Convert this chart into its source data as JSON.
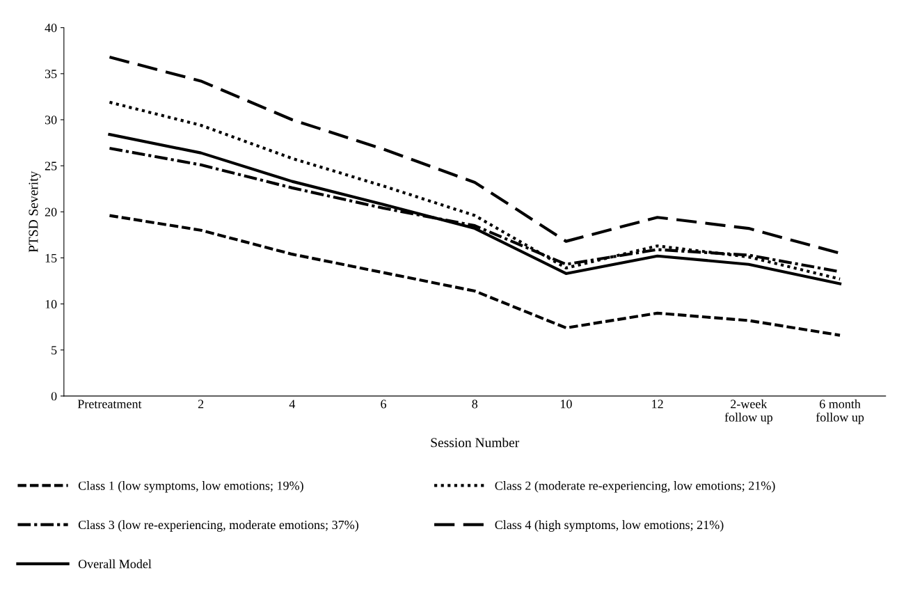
{
  "chart_data": {
    "type": "line",
    "xlabel": "Session Number",
    "ylabel": "PTSD Severity",
    "categories": [
      "Pretreatment",
      "2",
      "4",
      "6",
      "8",
      "10",
      "12",
      "2-week\nfollow up",
      "6 month\nfollow up"
    ],
    "series": [
      {
        "name": "Class 1 (low symptoms, low emotions; 19%)",
        "color": "#000000",
        "line_style": "dashed",
        "values": [
          19.6,
          18.0,
          15.4,
          13.4,
          11.4,
          7.4,
          9.0,
          8.2,
          6.6
        ]
      },
      {
        "name": "Class 2 (moderate re-experiencing, low emotions; 21%)",
        "color": "#000000",
        "line_style": "dotted",
        "values": [
          31.9,
          29.4,
          25.8,
          22.8,
          19.6,
          13.9,
          16.3,
          15.1,
          12.7
        ]
      },
      {
        "name": "Class 3 (low re-experiencing, moderate emotions; 37%)",
        "color": "#000000",
        "line_style": "dashdot",
        "values": [
          26.9,
          25.1,
          22.6,
          20.4,
          18.5,
          14.3,
          15.9,
          15.3,
          13.5
        ]
      },
      {
        "name": "Class 4 (high symptoms, low emotions; 21%)",
        "color": "#000000",
        "line_style": "longdash",
        "values": [
          36.8,
          34.2,
          30.0,
          26.8,
          23.2,
          16.8,
          19.4,
          18.2,
          15.5
        ]
      },
      {
        "name": "Overall Model",
        "color": "#000000",
        "line_style": "solid",
        "values": [
          28.4,
          26.4,
          23.3,
          20.8,
          18.2,
          13.3,
          15.2,
          14.3,
          12.2
        ]
      }
    ],
    "ylim": [
      0,
      40
    ],
    "yticks": [
      0,
      5,
      10,
      15,
      20,
      25,
      30,
      35,
      40
    ],
    "grid": false,
    "legend": "bottom",
    "marker": "none"
  }
}
